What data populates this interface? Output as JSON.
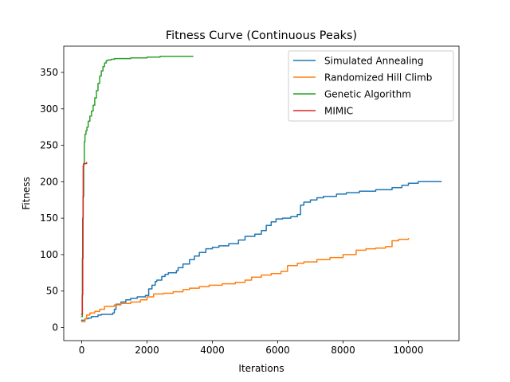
{
  "chart_data": {
    "type": "line",
    "title": "Fitness Curve (Continuous Peaks)",
    "xlabel": "Iterations",
    "ylabel": "Fitness",
    "xlim": [
      -550,
      11550
    ],
    "ylim": [
      -18,
      386
    ],
    "xticks": [
      0,
      2000,
      4000,
      6000,
      8000,
      10000
    ],
    "yticks": [
      0,
      50,
      100,
      150,
      200,
      250,
      300,
      350
    ],
    "grid": false,
    "legend_position": "top-right",
    "series": [
      {
        "name": "Simulated Annealing",
        "color": "#1f77b4",
        "x": [
          0,
          100,
          200,
          300,
          500,
          600,
          800,
          950,
          1000,
          1050,
          1200,
          1350,
          1500,
          1700,
          1950,
          2050,
          2150,
          2250,
          2300,
          2450,
          2550,
          2650,
          2900,
          2950,
          3100,
          3300,
          3450,
          3600,
          3800,
          4000,
          4200,
          4500,
          4800,
          5000,
          5300,
          5500,
          5650,
          5800,
          5950,
          6150,
          6400,
          6600,
          6700,
          6800,
          7000,
          7200,
          7400,
          7800,
          8100,
          8500,
          9000,
          9500,
          9800,
          10000,
          10300,
          10800,
          11000
        ],
        "y": [
          10,
          12,
          13,
          15,
          17,
          18,
          18,
          20,
          25,
          32,
          35,
          38,
          40,
          42,
          44,
          53,
          58,
          63,
          65,
          70,
          73,
          75,
          78,
          82,
          87,
          93,
          98,
          103,
          108,
          110,
          112,
          115,
          120,
          125,
          128,
          133,
          140,
          145,
          149,
          150,
          152,
          155,
          168,
          172,
          175,
          178,
          180,
          183,
          185,
          187,
          189,
          192,
          195,
          198,
          200,
          200,
          200
        ]
      },
      {
        "name": "Randomized Hill Climb",
        "color": "#ff7f0e",
        "x": [
          0,
          100,
          150,
          250,
          400,
          550,
          700,
          1000,
          1200,
          1500,
          1800,
          2000,
          2200,
          2500,
          2800,
          3100,
          3300,
          3600,
          3900,
          4300,
          4700,
          5000,
          5200,
          5500,
          5800,
          6100,
          6300,
          6600,
          6800,
          7200,
          7600,
          8000,
          8400,
          8700,
          9000,
          9300,
          9500,
          9700,
          10000
        ],
        "y": [
          8,
          12,
          17,
          20,
          22,
          25,
          29,
          31,
          33,
          35,
          38,
          42,
          46,
          47,
          49,
          52,
          54,
          56,
          58,
          60,
          62,
          65,
          69,
          72,
          74,
          77,
          85,
          88,
          90,
          93,
          96,
          100,
          106,
          108,
          109,
          111,
          119,
          121,
          122
        ]
      },
      {
        "name": "Genetic Algorithm",
        "color": "#2ca02c",
        "x": [
          0,
          20,
          40,
          60,
          80,
          100,
          130,
          160,
          200,
          250,
          300,
          350,
          400,
          450,
          500,
          550,
          600,
          650,
          700,
          750,
          800,
          900,
          1000,
          1200,
          1500,
          1900,
          2000,
          2400,
          3000,
          3400
        ],
        "y": [
          15,
          95,
          180,
          225,
          255,
          265,
          270,
          275,
          283,
          290,
          297,
          305,
          315,
          325,
          335,
          345,
          352,
          358,
          363,
          366,
          367,
          368,
          369,
          369,
          370,
          370,
          371,
          372,
          372,
          372
        ]
      },
      {
        "name": "MIMIC",
        "color": "#d62728",
        "x": [
          0,
          15,
          30,
          45,
          60,
          80,
          100,
          150
        ],
        "y": [
          18,
          45,
          150,
          222,
          224,
          225,
          225,
          226
        ]
      }
    ]
  }
}
